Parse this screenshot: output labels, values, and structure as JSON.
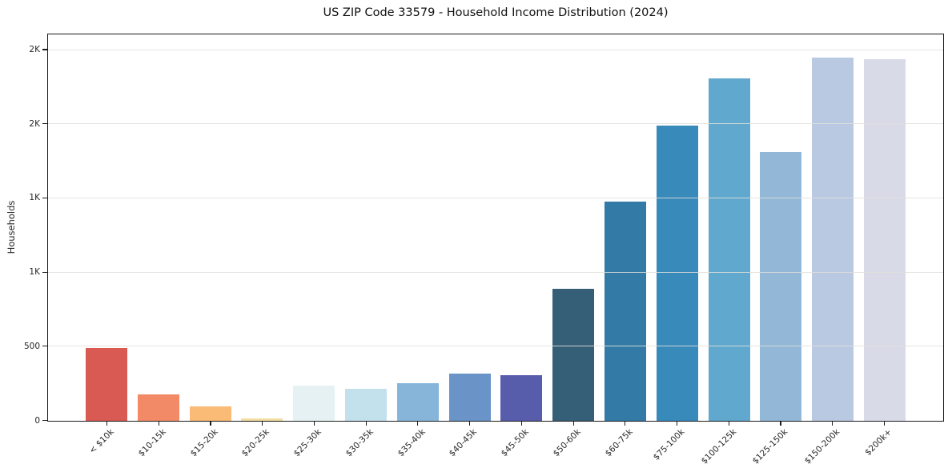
{
  "figure": {
    "title": "US ZIP Code 33579 - Household Income Distribution (2024)"
  },
  "chart_data": {
    "type": "bar",
    "title": "US ZIP Code 33579 - Household Income Distribution (2024)",
    "xlabel": "",
    "ylabel": "Households",
    "ylim": [
      0,
      2600
    ],
    "grid": "horizontal",
    "legend": "none",
    "background_color": "#ffffff",
    "gridline_color": "#e7e5e2",
    "spine_color": "#1a1a1a",
    "tick_label_color": "#262626",
    "categories": [
      "< $10k",
      "$10-15k",
      "$15-20k",
      "$20-25k",
      "$25-30k",
      "$30-35k",
      "$35-40k",
      "$40-45k",
      "$45-50k",
      "$50-60k",
      "$60-75k",
      "$75-100k",
      "$100-125k",
      "$125-150k",
      "$150-200k",
      "$200k+"
    ],
    "values": [
      490,
      178,
      95,
      15,
      235,
      218,
      255,
      320,
      305,
      890,
      1480,
      1990,
      2310,
      1810,
      2450,
      2440
    ],
    "bar_colors": [
      "#d85a52",
      "#f28a67",
      "#f9bb76",
      "#f3dfa2",
      "#e6f1f3",
      "#c3e1ed",
      "#87b5da",
      "#6a93c8",
      "#575cab",
      "#355f77",
      "#337ba6",
      "#388abb",
      "#61a8ce",
      "#92b7d7",
      "#bac9e2",
      "#d8dae8"
    ],
    "y_ticks": [
      {
        "value": 0,
        "label": "0"
      },
      {
        "value": 500,
        "label": "500"
      },
      {
        "value": 1000,
        "label": "1K"
      },
      {
        "value": 1500,
        "label": "1K"
      },
      {
        "value": 2000,
        "label": "2K"
      },
      {
        "value": 2500,
        "label": "2K"
      }
    ]
  }
}
